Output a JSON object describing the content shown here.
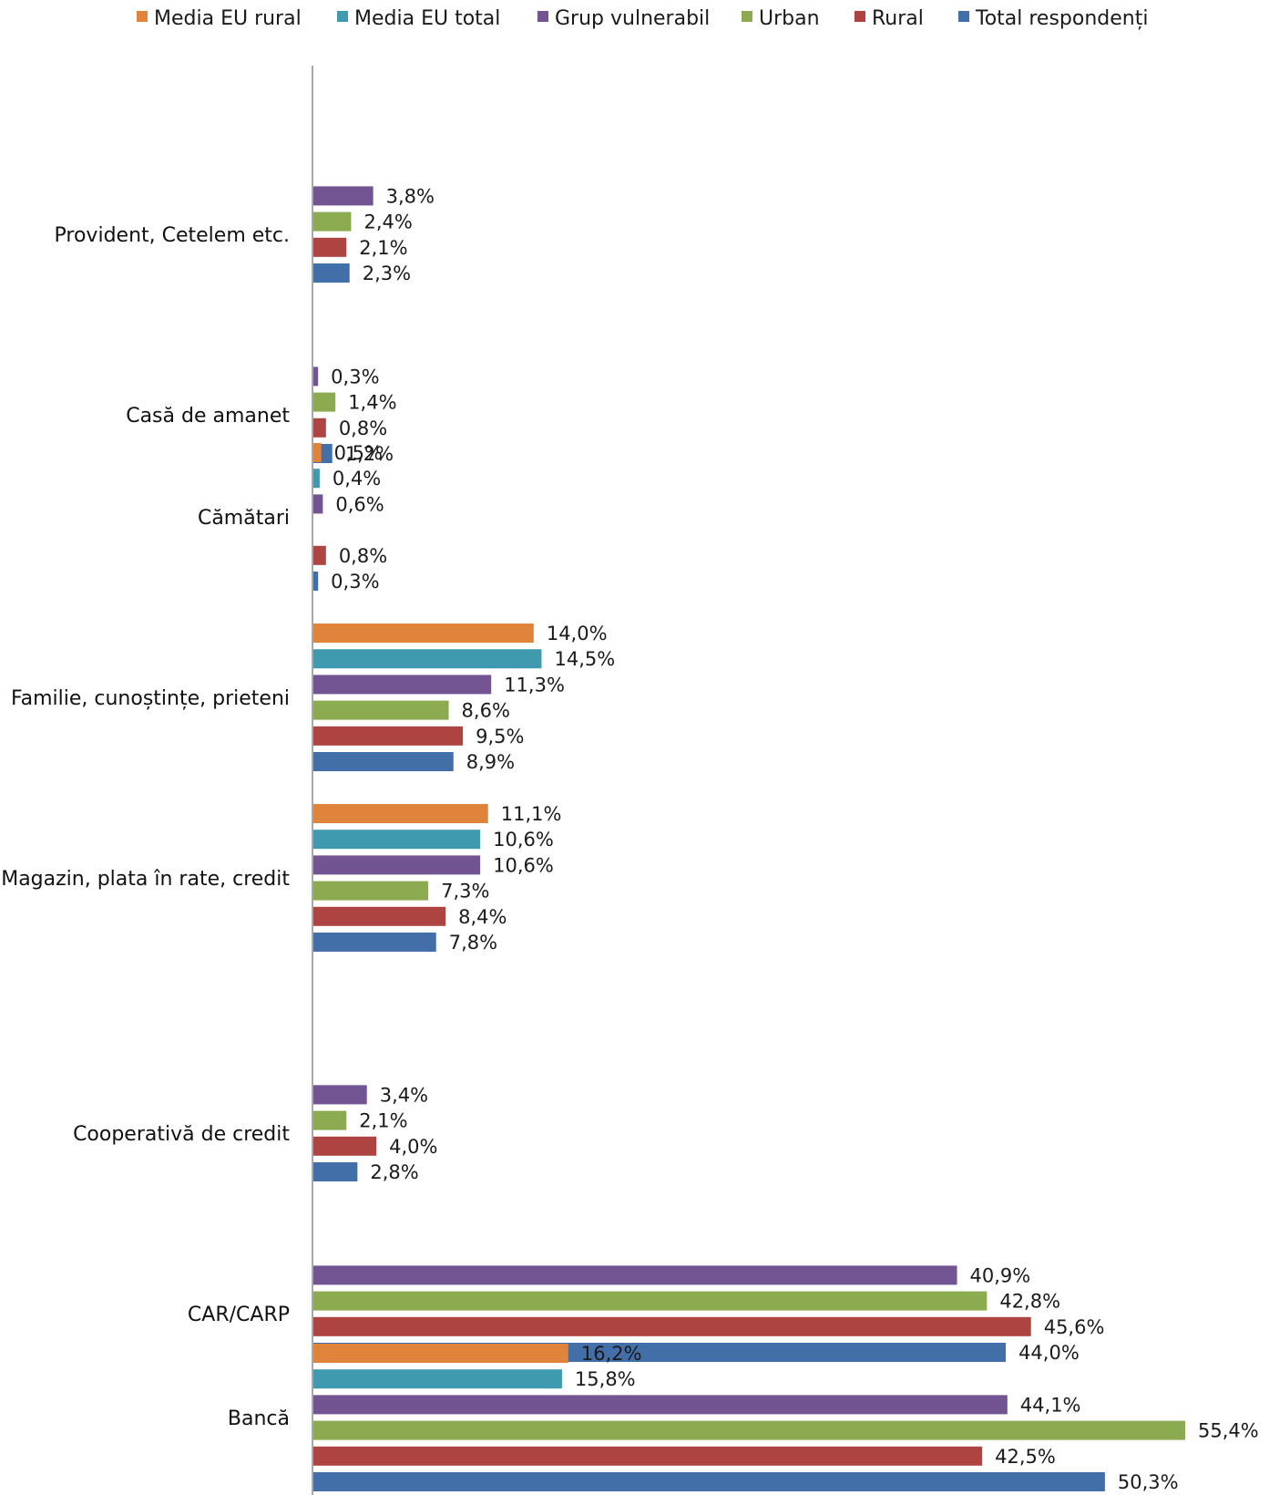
{
  "chart_data": {
    "type": "bar",
    "orientation": "horizontal",
    "legend_position": "top",
    "grid": false,
    "xlim": [
      0,
      56
    ],
    "series": [
      {
        "name": "Media EU rural",
        "color": "#E0843C",
        "values": [
          null,
          null,
          0.5,
          14.0,
          11.1,
          null,
          null,
          16.2
        ],
        "labels": [
          null,
          null,
          "0,5%",
          "14,0%",
          "11,1%",
          null,
          null,
          "16,2%"
        ]
      },
      {
        "name": "Media EU total",
        "color": "#3F9AAF",
        "values": [
          null,
          null,
          0.4,
          14.5,
          10.6,
          null,
          null,
          15.8
        ],
        "labels": [
          null,
          null,
          "0,4%",
          "14,5%",
          "10,6%",
          null,
          null,
          "15,8%"
        ]
      },
      {
        "name": "Grup vulnerabil",
        "color": "#735493",
        "values": [
          3.8,
          0.3,
          0.6,
          11.3,
          10.6,
          3.4,
          40.9,
          44.1
        ],
        "labels": [
          "3,8%",
          "0,3%",
          "0,6%",
          "11,3%",
          "10,6%",
          "3,4%",
          "40,9%",
          "44,1%"
        ]
      },
      {
        "name": "Urban",
        "color": "#8CAA4F",
        "values": [
          2.4,
          1.4,
          null,
          8.6,
          7.3,
          2.1,
          42.8,
          55.4
        ],
        "labels": [
          "2,4%",
          "1,4%",
          null,
          "8,6%",
          "7,3%",
          "2,1%",
          "42,8%",
          "55,4%"
        ]
      },
      {
        "name": "Rural",
        "color": "#AE4442",
        "values": [
          2.1,
          0.8,
          0.8,
          9.5,
          8.4,
          4.0,
          45.6,
          42.5
        ],
        "labels": [
          "2,1%",
          "0,8%",
          "0,8%",
          "9,5%",
          "8,4%",
          "4,0%",
          "45,6%",
          "42,5%"
        ]
      },
      {
        "name": "Total respondenți",
        "color": "#436FA9",
        "values": [
          2.3,
          1.2,
          0.3,
          8.9,
          7.8,
          2.8,
          44.0,
          50.3
        ],
        "labels": [
          "2,3%",
          "1,2%",
          "0,3%",
          "8,9%",
          "7,8%",
          "2,8%",
          "44,0%",
          "50,3%"
        ]
      }
    ],
    "categories": [
      "Provident, Cetelem etc.",
      "Casă de amanet",
      "Cămătari",
      "Familie, cunoștințe, prieteni",
      "Magazin, plata în rate, credit",
      "Cooperativă de credit",
      "CAR/CARP",
      "Bancă"
    ]
  }
}
